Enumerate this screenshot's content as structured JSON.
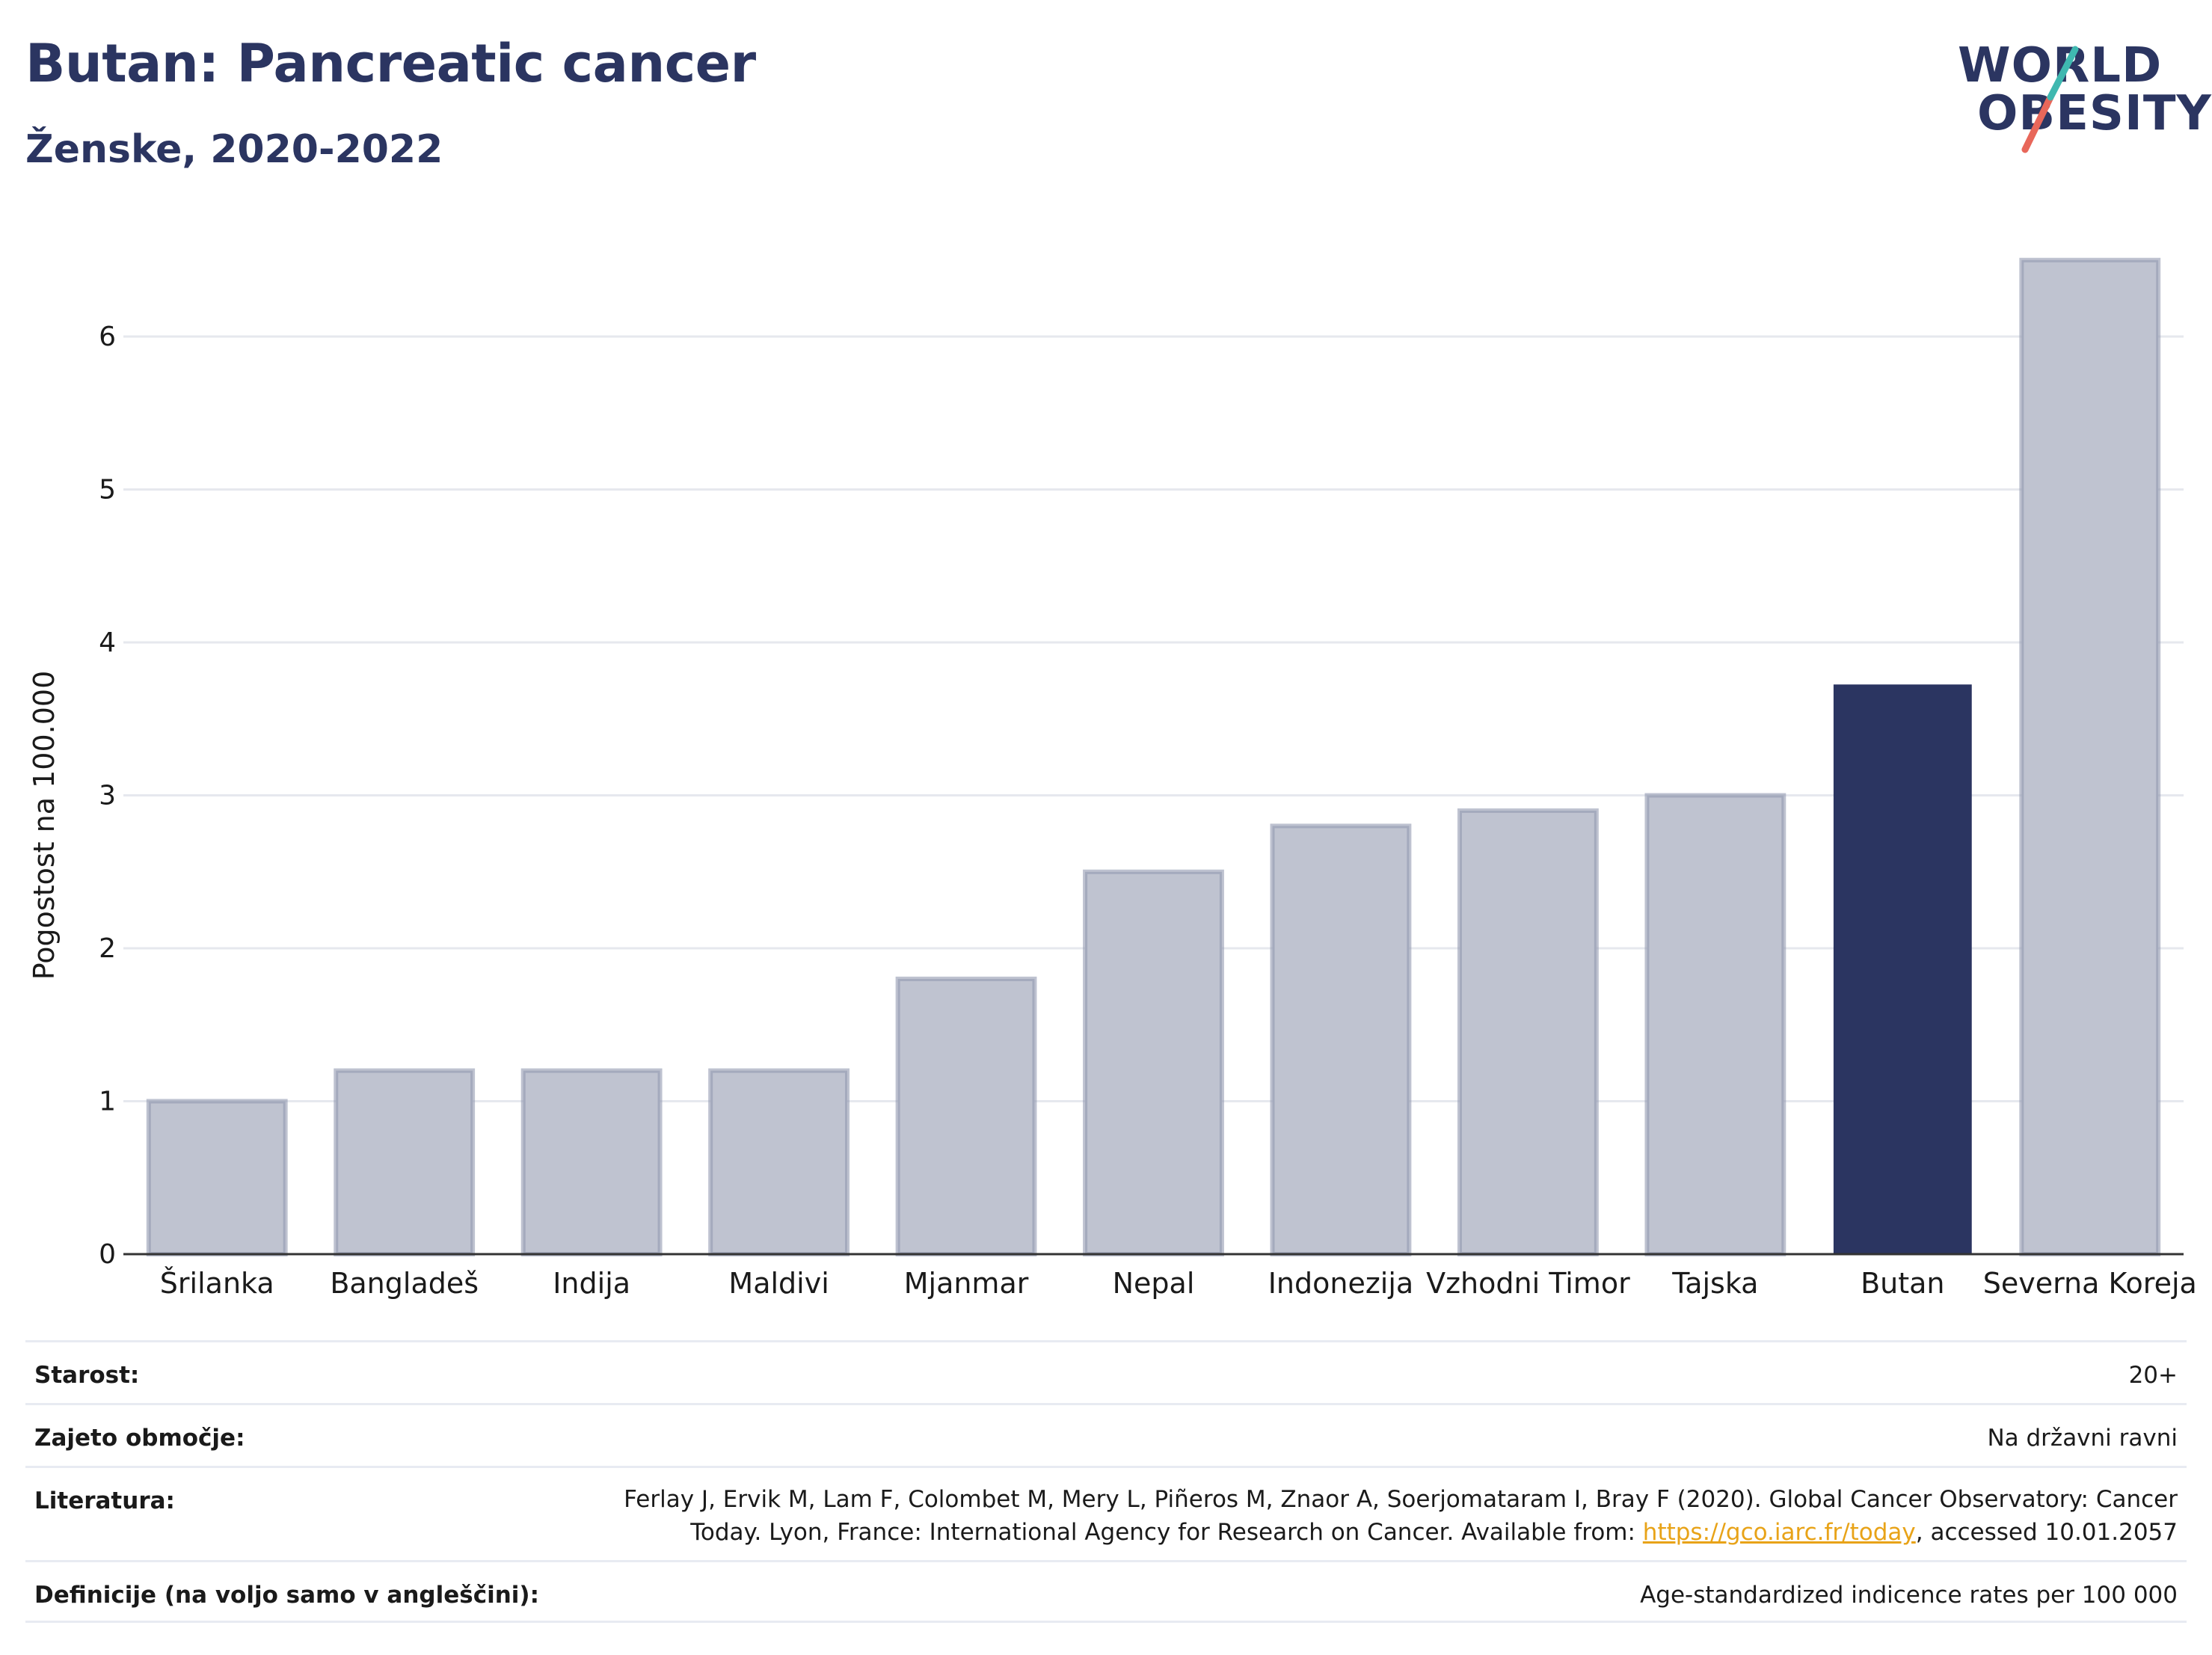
{
  "title": "Butan: Pancreatic cancer",
  "subtitle": "Ženske, 2020-2022",
  "logo": {
    "line1": "WORLD",
    "line2": "OBESITY"
  },
  "chart_data": {
    "type": "bar",
    "categories": [
      "Šrilanka",
      "Bangladeš",
      "Indija",
      "Maldivi",
      "Mjanmar",
      "Nepal",
      "Indonezija",
      "Vzhodni Timor",
      "Tajska",
      "Butan",
      "Severna Koreja"
    ],
    "values": [
      1.0,
      1.2,
      1.2,
      1.2,
      1.8,
      2.5,
      2.8,
      2.9,
      3.0,
      3.72,
      6.5
    ],
    "highlight": "Butan",
    "ylabel": "Pogostost na 100.000",
    "xlabel": "",
    "ylim": [
      0,
      6.6
    ],
    "yticks": [
      0,
      1,
      2,
      3,
      4,
      5,
      6
    ],
    "grid": true,
    "colors": {
      "bar": "#bfc3d0",
      "bar_border": "#9399b1",
      "highlight": "#2b3561",
      "grid": "#e6e8ee",
      "axis": "#333333"
    }
  },
  "meta": {
    "age_label": "Starost:",
    "age_value": "20+",
    "coverage_label": "Zajeto območje:",
    "coverage_value": "Na državni ravni",
    "references_label": "Literatura:",
    "references_text_1": "Ferlay J, Ervik M, Lam F, Colombet M, Mery L, Piñeros M, Znaor A, Soerjomataram I, Bray F (2020). Global Cancer Observatory: Cancer Today. Lyon, France: International Agency for Research on Cancer. Available from: ",
    "references_link": "https://gco.iarc.fr/today",
    "references_text_2": ", accessed 10.01.2057",
    "definitions_label": "Definicije (na voljo samo v angleščini):",
    "definitions_value": "Age-standardized indicence rates per 100 000"
  }
}
